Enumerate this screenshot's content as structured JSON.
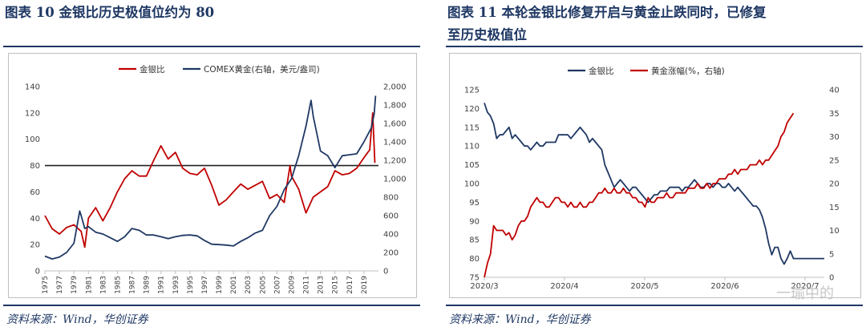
{
  "left": {
    "title": "图表 10   金银比历史极值位约为 80",
    "source": "资料来源：Wind，华创证券"
  },
  "right": {
    "title_line1": "图表 11   本轮金银比修复开启与黄金止跌同时，已修复",
    "title_line2": "至历史极值位",
    "source": "资料来源：Wind，华创证券",
    "watermark": "一瑜中的"
  },
  "colors": {
    "gold_silver": "#c00000",
    "comex": "#1f3864",
    "title": "#1f3864",
    "refline": "#222222"
  },
  "chart_data": [
    {
      "type": "line",
      "legend_placement": "top",
      "series": [
        {
          "name": "金银比",
          "axis": "left",
          "x": [
            1975,
            1976,
            1977,
            1978,
            1979,
            1980,
            1980.5,
            1981,
            1982,
            1983,
            1984,
            1985,
            1986,
            1987,
            1988,
            1989,
            1990,
            1991,
            1992,
            1993,
            1994,
            1995,
            1996,
            1997,
            1998,
            1999,
            2000,
            2001,
            2002,
            2003,
            2004,
            2005,
            2006,
            2007,
            2008,
            2008.8,
            2009,
            2010,
            2011,
            2012,
            2013,
            2014,
            2015,
            2016,
            2017,
            2018,
            2019,
            2019.8,
            2020.2,
            2020.5
          ],
          "values": [
            42,
            32,
            28,
            33,
            35,
            30,
            18,
            40,
            48,
            38,
            48,
            60,
            70,
            76,
            72,
            72,
            84,
            95,
            85,
            90,
            78,
            74,
            73,
            78,
            65,
            50,
            54,
            60,
            66,
            62,
            65,
            68,
            55,
            58,
            52,
            80,
            72,
            62,
            44,
            56,
            60,
            64,
            76,
            73,
            74,
            78,
            86,
            92,
            120,
            82
          ]
        },
        {
          "name": "COMEX黄金(右轴，美元/盎司)",
          "axis": "right",
          "x": [
            1975,
            1976,
            1977,
            1978,
            1979,
            1979.8,
            1980,
            1980.5,
            1981,
            1982,
            1983,
            1984,
            1985,
            1986,
            1987,
            1988,
            1989,
            1990,
            1991,
            1992,
            1993,
            1994,
            1995,
            1996,
            1997,
            1998,
            1999,
            2000,
            2001,
            2002,
            2003,
            2004,
            2005,
            2006,
            2007,
            2008,
            2009,
            2010,
            2011,
            2011.7,
            2012,
            2013,
            2014,
            2015,
            2016,
            2017,
            2018,
            2019,
            2020,
            2020.4,
            2020.6
          ],
          "values": [
            160,
            130,
            150,
            200,
            300,
            650,
            600,
            460,
            480,
            420,
            400,
            360,
            320,
            370,
            460,
            440,
            390,
            390,
            370,
            350,
            370,
            385,
            390,
            380,
            330,
            290,
            285,
            280,
            270,
            320,
            360,
            410,
            440,
            600,
            700,
            880,
            1000,
            1250,
            1570,
            1850,
            1680,
            1300,
            1250,
            1120,
            1250,
            1260,
            1270,
            1400,
            1550,
            1700,
            1900
          ]
        }
      ],
      "reference_line": {
        "axis": "left",
        "value": 80
      },
      "x_ticks": [
        "1975",
        "1977",
        "1979",
        "1981",
        "1983",
        "1985",
        "1987",
        "1989",
        "1991",
        "1993",
        "1995",
        "1997",
        "1999",
        "2001",
        "2003",
        "2005",
        "2007",
        "2009",
        "2011",
        "2013",
        "2015",
        "2017",
        "2019"
      ],
      "xlim": [
        1975,
        2021
      ],
      "ylim_left": [
        0,
        140
      ],
      "yticks_left": [
        0,
        20,
        40,
        60,
        80,
        100,
        120,
        140
      ],
      "ylim_right": [
        0,
        2000
      ],
      "yticks_right": [
        "0",
        "200",
        "400",
        "600",
        "800",
        "1,000",
        "1,200",
        "1,400",
        "1,600",
        "1,800",
        "2,000"
      ]
    },
    {
      "type": "line",
      "legend_placement": "top",
      "series": [
        {
          "name": "金银比",
          "axis": "left",
          "x": [
            0,
            1,
            2,
            3,
            4,
            5,
            6,
            7,
            8,
            9,
            10,
            11,
            12,
            13,
            14,
            15,
            16,
            17,
            18,
            19,
            20,
            21,
            22,
            23,
            24,
            25,
            26,
            27,
            28,
            29,
            30,
            31,
            32,
            33,
            34,
            35,
            36,
            37,
            38,
            39,
            40,
            41,
            42,
            43,
            44,
            45,
            46,
            47,
            48,
            49,
            50,
            51,
            52,
            53,
            54,
            55,
            56,
            57,
            58,
            59,
            60,
            61,
            62,
            63,
            64,
            65,
            66,
            67,
            68,
            69,
            70,
            71,
            72,
            73,
            74,
            75,
            76,
            77,
            78,
            79,
            80,
            81,
            82,
            83,
            84,
            85,
            86,
            87,
            88,
            89,
            90,
            91,
            92,
            93,
            94,
            95,
            96,
            97,
            98,
            99,
            100,
            101,
            102,
            103,
            104,
            105,
            106,
            107,
            108,
            109,
            110
          ],
          "values": [
            121.5,
            119,
            118,
            116,
            112,
            113,
            113,
            114,
            115,
            112,
            113,
            112,
            111,
            110,
            110,
            109,
            110,
            111,
            110,
            110,
            111,
            111,
            111,
            111,
            113,
            113,
            113,
            113,
            112,
            113,
            114,
            115,
            114,
            113,
            111,
            112,
            111,
            110,
            109,
            105,
            103,
            101,
            99,
            100,
            101,
            100,
            99,
            98,
            99,
            99,
            98,
            97,
            96,
            95,
            96,
            97,
            97,
            98,
            98,
            98,
            99,
            99,
            99,
            99,
            98,
            99,
            99,
            100,
            101,
            100,
            99,
            99,
            100,
            100,
            99,
            100,
            100,
            99,
            99,
            100,
            99,
            98,
            99,
            98,
            97,
            96,
            95,
            94,
            94,
            93,
            91,
            88,
            84,
            81,
            83,
            83,
            80,
            78.5,
            80,
            82,
            80,
            80,
            80,
            80,
            80,
            80,
            80,
            80,
            80,
            80,
            80
          ]
        },
        {
          "name": "黄金涨幅(%，右轴)",
          "axis": "right",
          "x": [
            0,
            1,
            2,
            3,
            4,
            5,
            6,
            7,
            8,
            9,
            10,
            11,
            12,
            13,
            14,
            15,
            16,
            17,
            18,
            19,
            20,
            21,
            22,
            23,
            24,
            25,
            26,
            27,
            28,
            29,
            30,
            31,
            32,
            33,
            34,
            35,
            36,
            37,
            38,
            39,
            40,
            41,
            42,
            43,
            44,
            45,
            46,
            47,
            48,
            49,
            50,
            51,
            52,
            53,
            54,
            55,
            56,
            57,
            58,
            59,
            60,
            61,
            62,
            63,
            64,
            65,
            66,
            67,
            68,
            69,
            70,
            71,
            72,
            73,
            74,
            75,
            76,
            77,
            78,
            79,
            80,
            81,
            82,
            83,
            84,
            85,
            86,
            87,
            88,
            89,
            90,
            91,
            92,
            93,
            94,
            95,
            96,
            97,
            98,
            99,
            100
          ],
          "values": [
            0,
            3,
            5,
            11,
            10,
            10,
            10,
            9,
            9.5,
            8,
            9,
            11,
            12,
            12,
            13,
            15,
            16,
            17,
            16,
            16,
            15,
            15,
            16,
            17,
            17,
            16,
            16,
            15,
            16,
            15,
            15,
            16,
            15,
            15,
            16,
            16,
            17,
            18,
            18,
            19,
            18,
            18,
            19,
            18,
            18,
            19,
            18,
            18,
            17,
            17,
            16,
            16,
            15,
            17,
            16,
            16,
            17,
            17,
            17,
            18,
            17,
            17,
            18,
            18,
            18,
            18,
            19,
            19,
            19,
            20,
            19,
            19,
            20,
            19,
            20,
            20,
            21,
            21,
            21,
            22,
            22,
            23,
            22,
            23,
            23,
            23,
            24,
            24,
            24,
            25,
            24,
            25,
            25,
            26,
            27,
            28,
            30,
            31,
            33,
            34,
            35
          ]
        }
      ],
      "x_ticks": [
        "2020/3",
        "2020/4",
        "2020/5",
        "2020/6",
        "2020/7"
      ],
      "xlim": [
        0,
        110
      ],
      "ylim_left": [
        75,
        125
      ],
      "yticks_left": [
        75,
        80,
        85,
        90,
        95,
        100,
        105,
        110,
        115,
        120,
        125
      ],
      "ylim_right": [
        0,
        40
      ],
      "yticks_right": [
        0,
        5,
        10,
        15,
        20,
        25,
        30,
        35,
        40
      ]
    }
  ]
}
